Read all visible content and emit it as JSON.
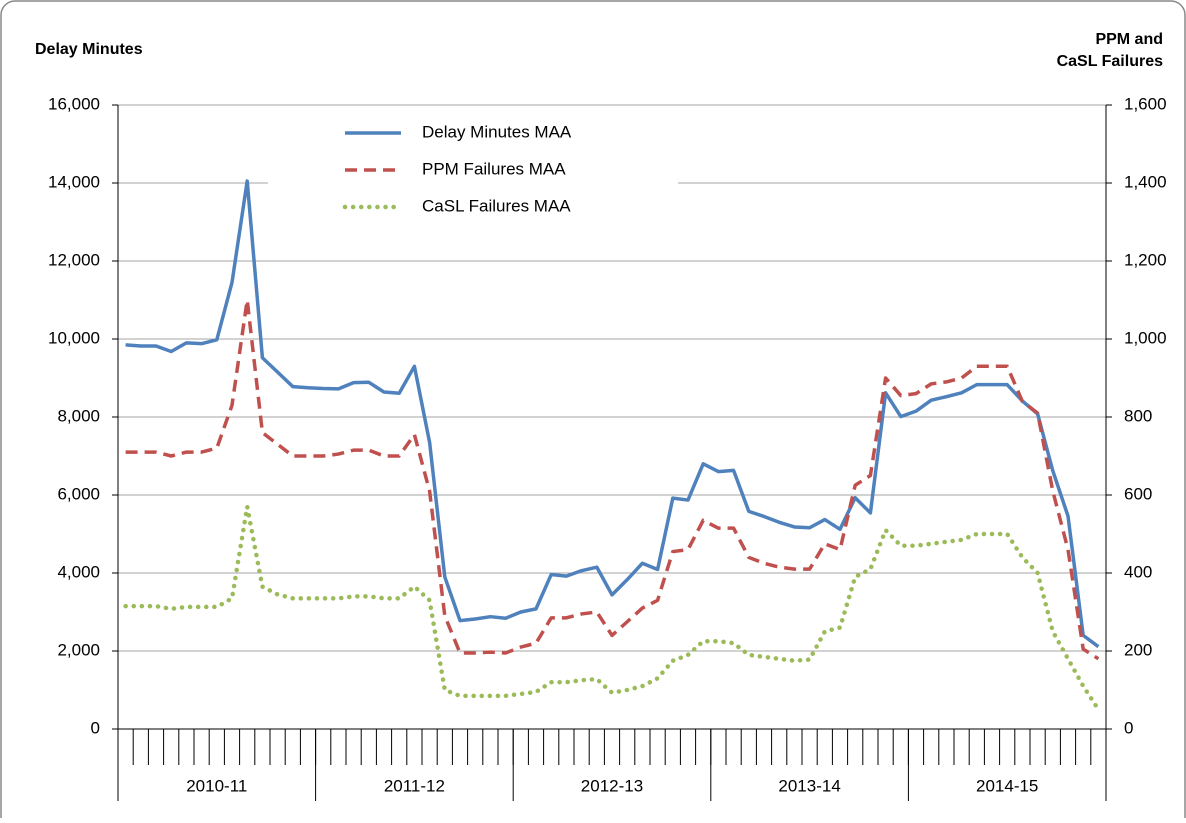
{
  "chart_data": {
    "type": "line",
    "y_label": "Delay Minutes",
    "y2_label": [
      "PPM and",
      "CaSL Failures"
    ],
    "categories": [
      null,
      null,
      null,
      null,
      null,
      null,
      null,
      null,
      null,
      null,
      null,
      null,
      null,
      null,
      null,
      null,
      null,
      null,
      null,
      null,
      null,
      null,
      null,
      null,
      null,
      null,
      null,
      null,
      null,
      null,
      null,
      null,
      null,
      null,
      null,
      null,
      null,
      null,
      null,
      null,
      null,
      null,
      null,
      null,
      null,
      null,
      null,
      null,
      null,
      null,
      null,
      null,
      null,
      null,
      null,
      null,
      null,
      null,
      null,
      null,
      null,
      null,
      null,
      null,
      null
    ],
    "category_groups": [
      "2010-11",
      "2011-12",
      "2012-13",
      "2013-14",
      "2014-15"
    ],
    "ylim": [
      0,
      16000
    ],
    "yticks": [
      0,
      {
        "value": 2000,
        "label": "2,000"
      },
      {
        "value": 4000,
        "label": "4,000"
      },
      {
        "value": 6000,
        "label": "6,000"
      },
      {
        "value": 8000,
        "label": "8,000"
      },
      {
        "value": 10000,
        "label": "10,000"
      },
      {
        "value": 12000,
        "label": "12,000"
      },
      {
        "value": 14000,
        "label": "14,000"
      },
      {
        "value": 16000,
        "label": "16,000"
      }
    ],
    "y2lim": [
      0,
      1600
    ],
    "y2ticks": [
      0,
      200,
      400,
      600,
      800,
      {
        "value": 1000,
        "label": "1,000"
      },
      {
        "value": 1200,
        "label": "1,200"
      },
      {
        "value": 1400,
        "label": "1,400"
      },
      {
        "value": 1600,
        "label": "1,600"
      }
    ],
    "grid": true,
    "legend": "top-left",
    "series": [
      {
        "name": "Delay Minutes MAA",
        "color": "#4f81bd",
        "style": "solid",
        "values": [
          9850,
          9820,
          9820,
          9680,
          9900,
          9880,
          9980,
          11450,
          14050,
          9520,
          9150,
          8780,
          8750,
          8730,
          8720,
          8880,
          8890,
          8640,
          8610,
          9300,
          7350,
          3900,
          2780,
          2820,
          2880,
          2840,
          3000,
          3080,
          3960,
          3920,
          4060,
          4150,
          3440,
          3830,
          4250,
          4090,
          5920,
          5870,
          6800,
          6600,
          6630,
          5580,
          5450,
          5300,
          5180,
          5160,
          5370,
          5120,
          5930,
          5540,
          8620,
          8010,
          8150,
          8430,
          8520,
          8620,
          8830,
          8830,
          8830,
          8410,
          8080,
          6620,
          5460,
          2400,
          2110
        ]
      },
      {
        "name": "PPM Failures MAA",
        "color": "#c0504d",
        "style": "dashed",
        "axis": "y2",
        "values": [
          710,
          710,
          710,
          700,
          710,
          710,
          720,
          830,
          1100,
          760,
          730,
          700,
          700,
          700,
          705,
          715,
          715,
          700,
          700,
          755,
          610,
          290,
          195,
          195,
          197,
          195,
          210,
          220,
          285,
          285,
          295,
          300,
          240,
          275,
          310,
          330,
          455,
          460,
          535,
          515,
          515,
          440,
          425,
          415,
          410,
          410,
          475,
          460,
          625,
          650,
          900,
          855,
          860,
          885,
          890,
          900,
          930,
          930,
          930,
          840,
          810,
          610,
          460,
          205,
          180
        ]
      },
      {
        "name": "CaSL Failures MAA",
        "color": "#9bbb59",
        "style": "dotted",
        "axis": "y2",
        "values": [
          315,
          315,
          315,
          308,
          313,
          313,
          313,
          335,
          570,
          365,
          345,
          335,
          335,
          335,
          335,
          340,
          340,
          335,
          335,
          365,
          330,
          100,
          85,
          85,
          85,
          85,
          90,
          95,
          120,
          120,
          125,
          128,
          93,
          100,
          110,
          130,
          175,
          190,
          225,
          225,
          220,
          190,
          185,
          180,
          175,
          178,
          250,
          260,
          390,
          410,
          510,
          470,
          470,
          475,
          480,
          485,
          500,
          500,
          500,
          440,
          400,
          250,
          180,
          110,
          50
        ]
      }
    ]
  }
}
